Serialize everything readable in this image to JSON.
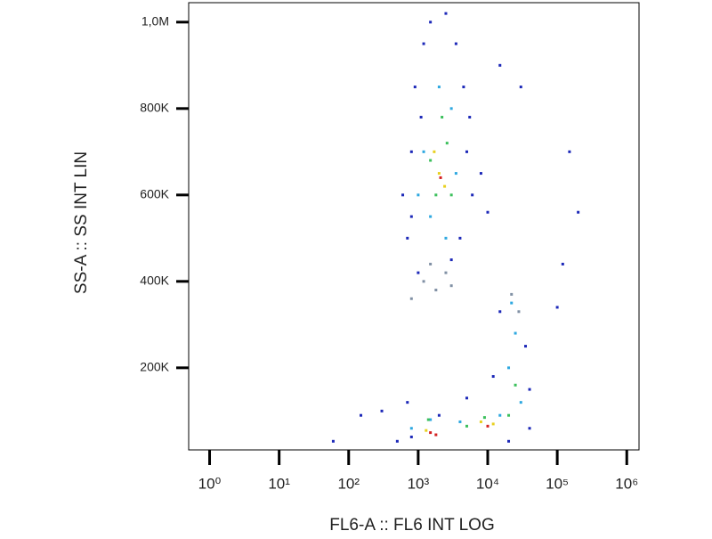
{
  "chart_data": {
    "type": "scatter",
    "x_label": "FL6-A :: FL6 INT LOG",
    "y_label": "SS-A :: SS INT LIN",
    "xscale": "log",
    "xlim": [
      0.5,
      1500000
    ],
    "ylim": [
      10000,
      1045000
    ],
    "xticks": [
      {
        "value": 1,
        "label": "10⁰"
      },
      {
        "value": 10,
        "label": "10¹"
      },
      {
        "value": 100,
        "label": "10²"
      },
      {
        "value": 1000,
        "label": "10³"
      },
      {
        "value": 10000,
        "label": "10⁴"
      },
      {
        "value": 100000,
        "label": "10⁵"
      },
      {
        "value": 1000000,
        "label": "10⁶"
      }
    ],
    "yticks": [
      {
        "value": 200000,
        "label": "200K"
      },
      {
        "value": 400000,
        "label": "400K"
      },
      {
        "value": 600000,
        "label": "600K"
      },
      {
        "value": 800000,
        "label": "800K"
      },
      {
        "value": 1000000,
        "label": "1,0M"
      }
    ],
    "series": [
      {
        "color": "#1c28b8",
        "x": [
          700,
          800,
          900,
          1200,
          1500,
          2500,
          3500,
          4500,
          5000,
          6000,
          4000,
          3000,
          1000,
          600,
          800,
          1100,
          5500,
          8000,
          10000,
          15000,
          30000,
          150000,
          200000,
          120000,
          100000,
          300,
          500,
          700,
          2000,
          5000,
          40000,
          40000,
          20000,
          800,
          150,
          60,
          12000,
          35000,
          15000
        ],
        "y": [
          500000,
          700000,
          850000,
          950000,
          1000000,
          1020000,
          950000,
          850000,
          700000,
          600000,
          500000,
          450000,
          420000,
          600000,
          550000,
          780000,
          780000,
          650000,
          560000,
          900000,
          850000,
          700000,
          560000,
          440000,
          340000,
          100000,
          30000,
          120000,
          90000,
          130000,
          150000,
          60000,
          30000,
          40000,
          90000,
          30000,
          180000,
          250000,
          330000
        ]
      },
      {
        "color": "#2ea8e0",
        "x": [
          1500,
          2500,
          1200,
          3500,
          2000,
          3000,
          1000,
          20000,
          25000,
          22000,
          1500,
          4000,
          15000,
          800,
          30000
        ],
        "y": [
          550000,
          500000,
          700000,
          650000,
          850000,
          800000,
          600000,
          200000,
          280000,
          350000,
          80000,
          75000,
          90000,
          60000,
          120000
        ]
      },
      {
        "color": "#3cc05c",
        "x": [
          1800,
          2600,
          2200,
          1500,
          3000,
          1400,
          9000,
          25000,
          20000,
          5000
        ],
        "y": [
          600000,
          720000,
          780000,
          680000,
          600000,
          80000,
          85000,
          160000,
          90000,
          65000
        ]
      },
      {
        "color": "#e8d020",
        "x": [
          2000,
          2400,
          1700,
          8000,
          1300,
          12000
        ],
        "y": [
          650000,
          620000,
          700000,
          75000,
          55000,
          70000
        ]
      },
      {
        "color": "#d42020",
        "x": [
          2100,
          1500,
          1800,
          10000
        ],
        "y": [
          640000,
          50000,
          45000,
          65000
        ]
      },
      {
        "color": "#8090a4",
        "x": [
          1200,
          1800,
          2500,
          800,
          3000,
          1500,
          22000,
          28000
        ],
        "y": [
          400000,
          380000,
          420000,
          360000,
          390000,
          440000,
          370000,
          330000
        ]
      }
    ]
  }
}
